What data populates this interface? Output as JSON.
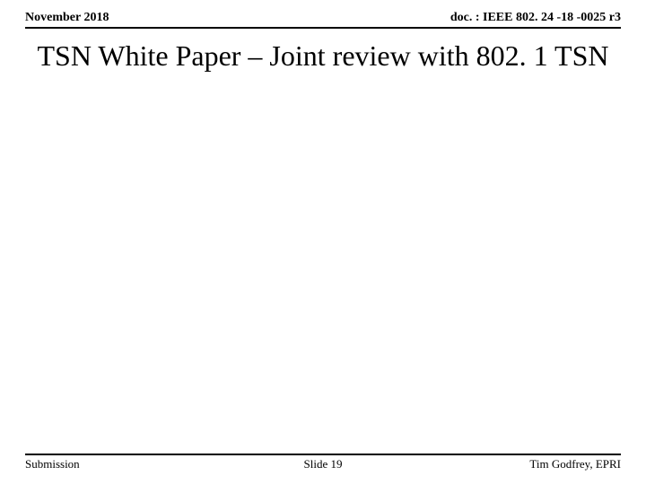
{
  "header": {
    "date": "November 2018",
    "doc_ref": "doc. : IEEE 802. 24 -18 -0025 r3"
  },
  "title": "TSN White Paper – Joint review with 802. 1 TSN",
  "footer": {
    "left": "Submission",
    "center": "Slide 19",
    "right": "Tim Godfrey, EPRI"
  }
}
